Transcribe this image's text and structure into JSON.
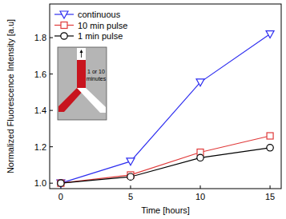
{
  "chart_data": {
    "type": "line",
    "x_label": "Time [hours]",
    "y_label": "Normalized Fluorescence Intensity [a.u]",
    "x": [
      0,
      5,
      10,
      15
    ],
    "series": [
      {
        "name": "continuous",
        "color": "#2f2ff0",
        "marker": "triangle-down",
        "values": [
          1.0,
          1.12,
          1.555,
          1.82
        ]
      },
      {
        "name": "10 min pulse",
        "color": "#e03a3a",
        "marker": "square",
        "values": [
          1.0,
          1.045,
          1.17,
          1.26
        ]
      },
      {
        "name": "1 min pulse",
        "color": "#000000",
        "marker": "circle",
        "values": [
          1.0,
          1.035,
          1.14,
          1.195
        ]
      }
    ],
    "xlim": [
      -0.8,
      15.8
    ],
    "xticks": [
      0,
      5,
      10,
      15
    ],
    "ylim": [
      0.97,
      1.985
    ],
    "yticks": [
      {
        "value": 1.0,
        "label": "1.0"
      },
      1.2,
      1.4,
      1.6,
      1.8
    ],
    "legend": "upper left",
    "grid": false,
    "annotations": [
      "1 or 10",
      "minutes"
    ]
  }
}
